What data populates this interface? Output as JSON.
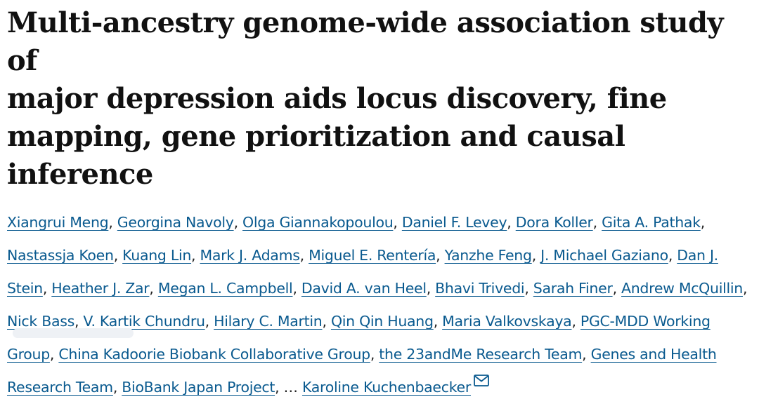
{
  "article": {
    "title_lines": [
      "Multi-ancestry genome-wide association study of",
      "major depression aids locus discovery, fine",
      "mapping, gene prioritization and causal inference"
    ],
    "authors": [
      "Xiangrui Meng",
      "Georgina Navoly",
      "Olga Giannakopoulou",
      "Daniel F. Levey",
      "Dora Koller",
      "Gita A. Pathak",
      "Nastassja Koen",
      "Kuang Lin",
      "Mark J. Adams",
      "Miguel E. Rentería",
      "Yanzhe Feng",
      "J. Michael Gaziano",
      "Dan J. Stein",
      "Heather J. Zar",
      "Megan L. Campbell",
      "David A. van Heel",
      "Bhavi Trivedi",
      "Sarah Finer",
      "Andrew McQuillin",
      "Nick Bass",
      "V. Kartik Chundru",
      "Hilary C. Martin",
      "Qin Qin Huang",
      "Maria Valkovskaya",
      "PGC-MDD Working Group",
      "China Kadoorie Biobank Collaborative Group",
      "the 23andMe Research Team",
      "Genes and Health Research Team",
      "BioBank Japan Project"
    ],
    "separator": ", ",
    "ellipsis": ", … ",
    "last_author": "Karoline Kuchenbaecker",
    "mail_icon": "envelope-icon"
  },
  "colors": {
    "title": "#111111",
    "link": "#0a5a8f",
    "text": "#222222"
  }
}
